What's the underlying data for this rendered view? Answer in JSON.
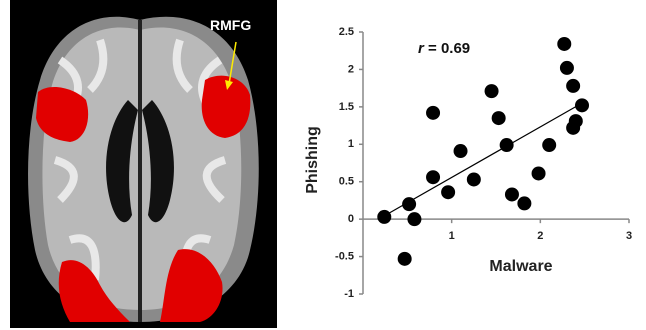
{
  "chart_data": {
    "type": "scatter",
    "image_label": "RMFG",
    "annotation_variable": "r",
    "annotation_text": "= 0.69",
    "x_label": "Malware",
    "y_label": "Phishing",
    "color": "#000000",
    "xlim": [
      0,
      3
    ],
    "xticks": [
      1,
      2,
      3
    ],
    "ylim": [
      -1,
      2.5
    ],
    "yticks": [
      -1,
      -0.5,
      0,
      0.5,
      1,
      1.5,
      2,
      2.5
    ],
    "x": [
      0.24,
      0.52,
      0.58,
      0.47,
      0.79,
      0.79,
      0.96,
      1.1,
      1.25,
      1.45,
      1.53,
      1.62,
      1.68,
      1.82,
      1.98,
      2.1,
      2.27,
      2.3,
      2.37,
      2.4,
      2.37,
      2.47
    ],
    "y": [
      0.03,
      0.2,
      0,
      -0.53,
      1.42,
      0.56,
      0.36,
      0.91,
      0.53,
      1.71,
      1.35,
      0.99,
      0.33,
      0.21,
      0.61,
      0.99,
      2.34,
      2.02,
      1.78,
      1.31,
      1.22,
      1.52
    ],
    "fit": {
      "x": [
        0.22,
        2.47
      ],
      "y": [
        0.03,
        1.55
      ]
    }
  }
}
